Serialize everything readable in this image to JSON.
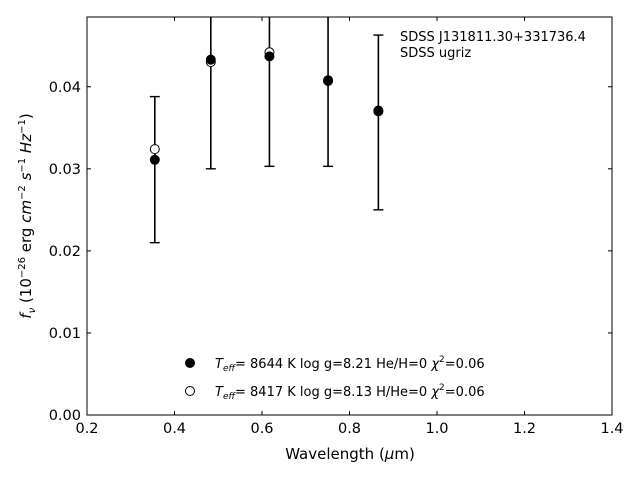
{
  "chart_data": {
    "type": "scatter",
    "xlabel": "Wavelength (μm)",
    "ylabel": "f_ν (10^-26 erg cm^-2 s^-1 Hz^-1)",
    "xlim": [
      0.2,
      1.4
    ],
    "ylim": [
      0.0,
      0.0485
    ],
    "xticks": [
      "0.2",
      "0.4",
      "0.6",
      "0.8",
      "1.0",
      "1.2",
      "1.4"
    ],
    "yticks": [
      "0.00",
      "0.01",
      "0.02",
      "0.03",
      "0.04"
    ],
    "annotation": [
      "SDSS J131811.30+331736.4",
      "SDSS ugriz"
    ],
    "observed": {
      "x": [
        0.355,
        0.483,
        0.617,
        0.751,
        0.866
      ],
      "y_low": [
        0.021,
        0.03,
        0.0303,
        0.0303,
        0.025
      ],
      "y_high": [
        0.0388,
        0.0485,
        0.0485,
        0.0485,
        0.0463
      ]
    },
    "series": [
      {
        "name": "Teff= 8644 K log g=8.21 He/H=0 χ2=0.06",
        "marker": "filled",
        "x": [
          0.355,
          0.483,
          0.617,
          0.751,
          0.866
        ],
        "y": [
          0.0311,
          0.0433,
          0.0437,
          0.0408,
          0.0371
        ]
      },
      {
        "name": "Teff= 8417 K log g=8.13 H/He=0 χ2=0.06",
        "marker": "open",
        "x": [
          0.355,
          0.483,
          0.617,
          0.751,
          0.866
        ],
        "y": [
          0.0324,
          0.043,
          0.0442,
          0.0407,
          0.037
        ]
      }
    ],
    "legend": {
      "placement": "bottom-center",
      "entries": [
        {
          "temp": "8644 K",
          "logg": "log g=8.21",
          "comp": "He/H=0",
          "chi2": "=0.06"
        },
        {
          "temp": "8417 K",
          "logg": "log g=8.13",
          "comp": "H/He=0",
          "chi2": "=0.06"
        }
      ]
    },
    "grid": false
  }
}
